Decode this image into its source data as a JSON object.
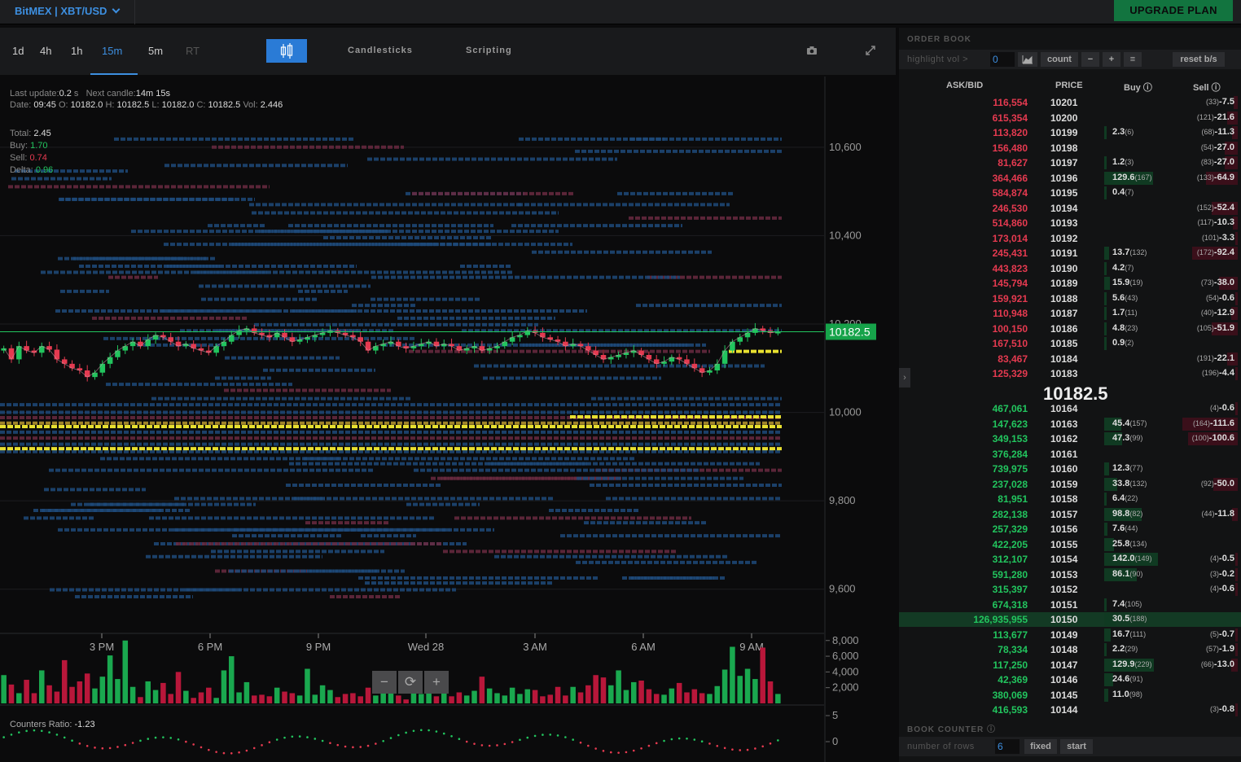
{
  "header": {
    "market": "BitMEX | XBT/USD",
    "upgrade": "UPGRADE PLAN"
  },
  "chartbar": {
    "timeframes": [
      "1d",
      "4h",
      "1h",
      "15m",
      "5m",
      "RT"
    ],
    "active_timeframe": "15m",
    "candlesticks": "Candlesticks",
    "scripting": "Scripting"
  },
  "chart_info": {
    "last_update_label": "Last update:",
    "last_update": "0.2",
    "last_update_unit": "s",
    "next_candle_label": "Next candle:",
    "next_candle": "14m 15s",
    "date_label": "Date:",
    "date": "09:45",
    "open_label": "O:",
    "open": "10182.0",
    "high_label": "H:",
    "high": "10182.5",
    "low_label": "L:",
    "low": "10182.0",
    "close_label": "C:",
    "close": "10182.5",
    "vol_label": "Vol:",
    "vol": "2.446",
    "total_label": "Total:",
    "total": "2.45",
    "buy_label": "Buy:",
    "buy": "1.70",
    "sell_label": "Sell:",
    "sell": "0.74",
    "delta_label": "Delta:",
    "delta": "0.96",
    "counters_label": "Counters Ratio:",
    "counters": "-1.23",
    "zoom_out": "−",
    "reset": "⟳",
    "zoom_in": "+"
  },
  "chart_data": {
    "type": "candlestick",
    "price_axis": {
      "ticks": [
        "10,600",
        "10,400",
        "10,200",
        "10,000",
        "9,800",
        "9,600"
      ],
      "range": [
        9500,
        10760
      ]
    },
    "current_price": "10182.5",
    "time_axis": [
      "3 PM",
      "6 PM",
      "9 PM",
      "Wed 28",
      "3 AM",
      "6 AM",
      "9 AM"
    ],
    "volume_axis": {
      "ticks": [
        "8,000",
        "6,000",
        "4,000",
        "2,000"
      ],
      "range": [
        0,
        8700
      ]
    },
    "ratio_axis": {
      "ticks": [
        "5",
        "0"
      ]
    },
    "close": [
      10145,
      10120,
      10150,
      10140,
      10135,
      10150,
      10142,
      10120,
      10110,
      10100,
      10095,
      10080,
      10090,
      10110,
      10125,
      10140,
      10150,
      10160,
      10150,
      10165,
      10175,
      10170,
      10160,
      10150,
      10155,
      10145,
      10140,
      10135,
      10150,
      10160,
      10175,
      10185,
      10190,
      10180,
      10175,
      10170,
      10180,
      10170,
      10160,
      10165,
      10170,
      10175,
      10180,
      10185,
      10180,
      10175,
      10170,
      10160,
      10140,
      10150,
      10155,
      10160,
      10150,
      10145,
      10150,
      10155,
      10160,
      10150,
      10155,
      10150,
      10140,
      10145,
      10150,
      10140,
      10145,
      10150,
      10160,
      10170,
      10175,
      10185,
      10180,
      10170,
      10165,
      10160,
      10150,
      10155,
      10150,
      10140,
      10130,
      10120,
      10125,
      10130,
      10135,
      10140,
      10130,
      10120,
      10110,
      10115,
      10125,
      10120,
      10110,
      10100,
      10090,
      10095,
      10110,
      10140,
      10160,
      10170,
      10180,
      10190,
      10185,
      10180,
      10182.5
    ],
    "volume": [
      3600,
      2400,
      1300,
      3000,
      1300,
      4200,
      2300,
      1500,
      5500,
      2100,
      2800,
      3800,
      1900,
      3400,
      6100,
      3100,
      8000,
      2100,
      800,
      2800,
      1700,
      2600,
      1200,
      4000,
      1600,
      700,
      1400,
      2000,
      700,
      4200,
      6000,
      1400,
      2700,
      1000,
      1100,
      900,
      2000,
      1500,
      1300,
      1000,
      4400,
      1100,
      2300,
      1700,
      800,
      1200,
      1300,
      900,
      2000,
      1000,
      1600,
      1300,
      1000,
      500,
      1500,
      1200,
      1500,
      900,
      1300,
      900,
      1400,
      1000,
      1600,
      3400,
      1900,
      1300,
      1000,
      2000,
      1200,
      1800,
      1700,
      900,
      1100,
      2100,
      1000,
      2100,
      1400,
      2300,
      3600,
      3300,
      2300,
      4200,
      1700,
      2700,
      2900,
      1800,
      1200,
      1100,
      1900,
      2600,
      1400,
      1800,
      1300,
      1200,
      2200,
      4300,
      7200,
      3500,
      4400,
      3100,
      7100,
      2800,
      1200
    ]
  },
  "order_book": {
    "title": "ORDER BOOK",
    "highlight_label": "highlight vol >",
    "highlight_value": "0",
    "count": "count",
    "reset": "reset b/s",
    "headers": {
      "askbid": "ASK/BID",
      "price": "PRICE",
      "buy": "Buy",
      "sell": "Sell"
    },
    "mid_price": "10182.5",
    "asks": [
      {
        "size": "116,554",
        "price": "10201",
        "buy": "",
        "bc": "",
        "sc": "(33)",
        "sell": "-7.5"
      },
      {
        "size": "615,354",
        "price": "10200",
        "buy": "",
        "bc": "",
        "sc": "(121)",
        "sell": "-21.6"
      },
      {
        "size": "113,820",
        "price": "10199",
        "buy": "2.3",
        "bc": "(6)",
        "sc": "(68)",
        "sell": "-11.3"
      },
      {
        "size": "156,480",
        "price": "10198",
        "buy": "",
        "bc": "",
        "sc": "(54)",
        "sell": "-27.0"
      },
      {
        "size": "81,627",
        "price": "10197",
        "buy": "1.2",
        "bc": "(3)",
        "sc": "(83)",
        "sell": "-27.0"
      },
      {
        "size": "364,466",
        "price": "10196",
        "buy": "129.6",
        "bc": "(167)",
        "sc": "(133)",
        "sell": "-64.9"
      },
      {
        "size": "584,874",
        "price": "10195",
        "buy": "0.4",
        "bc": "(7)",
        "sc": "",
        "sell": ""
      },
      {
        "size": "246,530",
        "price": "10194",
        "buy": "",
        "bc": "",
        "sc": "(152)",
        "sell": "-52.4"
      },
      {
        "size": "514,860",
        "price": "10193",
        "buy": "",
        "bc": "",
        "sc": "(117)",
        "sell": "-10.3"
      },
      {
        "size": "173,014",
        "price": "10192",
        "buy": "",
        "bc": "",
        "sc": "(101)",
        "sell": "-3.3"
      },
      {
        "size": "245,431",
        "price": "10191",
        "buy": "13.7",
        "bc": "(132)",
        "sc": "(172)",
        "sell": "-92.4"
      },
      {
        "size": "443,823",
        "price": "10190",
        "buy": "4.2",
        "bc": "(7)",
        "sc": "",
        "sell": ""
      },
      {
        "size": "145,794",
        "price": "10189",
        "buy": "15.9",
        "bc": "(19)",
        "sc": "(73)",
        "sell": "-38.0"
      },
      {
        "size": "159,921",
        "price": "10188",
        "buy": "5.6",
        "bc": "(43)",
        "sc": "(54)",
        "sell": "-0.6"
      },
      {
        "size": "110,948",
        "price": "10187",
        "buy": "1.7",
        "bc": "(11)",
        "sc": "(40)",
        "sell": "-12.9"
      },
      {
        "size": "100,150",
        "price": "10186",
        "buy": "4.8",
        "bc": "(23)",
        "sc": "(105)",
        "sell": "-51.9"
      },
      {
        "size": "167,510",
        "price": "10185",
        "buy": "0.9",
        "bc": "(2)",
        "sc": "",
        "sell": ""
      },
      {
        "size": "83,467",
        "price": "10184",
        "buy": "",
        "bc": "",
        "sc": "(191)",
        "sell": "-22.1"
      },
      {
        "size": "125,329",
        "price": "10183",
        "buy": "",
        "bc": "",
        "sc": "(196)",
        "sell": "-4.4"
      }
    ],
    "bids": [
      {
        "size": "467,061",
        "price": "10164",
        "buy": "",
        "bc": "",
        "sc": "(4)",
        "sell": "-0.6"
      },
      {
        "size": "147,623",
        "price": "10163",
        "buy": "45.4",
        "bc": "(157)",
        "sc": "(164)",
        "sell": "-111.6"
      },
      {
        "size": "349,153",
        "price": "10162",
        "buy": "47.3",
        "bc": "(99)",
        "sc": "(100)",
        "sell": "-100.6"
      },
      {
        "size": "376,284",
        "price": "10161",
        "buy": "",
        "bc": "",
        "sc": "",
        "sell": ""
      },
      {
        "size": "739,975",
        "price": "10160",
        "buy": "12.3",
        "bc": "(77)",
        "sc": "",
        "sell": ""
      },
      {
        "size": "237,028",
        "price": "10159",
        "buy": "33.8",
        "bc": "(132)",
        "sc": "(92)",
        "sell": "-50.0"
      },
      {
        "size": "81,951",
        "price": "10158",
        "buy": "6.4",
        "bc": "(22)",
        "sc": "",
        "sell": ""
      },
      {
        "size": "282,138",
        "price": "10157",
        "buy": "98.8",
        "bc": "(82)",
        "sc": "(44)",
        "sell": "-11.8"
      },
      {
        "size": "257,329",
        "price": "10156",
        "buy": "7.6",
        "bc": "(44)",
        "sc": "",
        "sell": ""
      },
      {
        "size": "422,205",
        "price": "10155",
        "buy": "25.8",
        "bc": "(134)",
        "sc": "",
        "sell": ""
      },
      {
        "size": "312,107",
        "price": "10154",
        "buy": "142.0",
        "bc": "(149)",
        "sc": "(4)",
        "sell": "-0.5"
      },
      {
        "size": "591,280",
        "price": "10153",
        "buy": "86.1",
        "bc": "(90)",
        "sc": "(3)",
        "sell": "-0.2"
      },
      {
        "size": "315,397",
        "price": "10152",
        "buy": "",
        "bc": "",
        "sc": "(4)",
        "sell": "-0.6"
      },
      {
        "size": "674,318",
        "price": "10151",
        "buy": "7.4",
        "bc": "(105)",
        "sc": "",
        "sell": ""
      },
      {
        "size": "126,935,955",
        "price": "10150",
        "buy": "30.5",
        "bc": "(188)",
        "sc": "",
        "sell": ""
      },
      {
        "size": "113,677",
        "price": "10149",
        "buy": "16.7",
        "bc": "(111)",
        "sc": "(5)",
        "sell": "-0.7"
      },
      {
        "size": "78,334",
        "price": "10148",
        "buy": "2.2",
        "bc": "(29)",
        "sc": "(57)",
        "sell": "-1.9"
      },
      {
        "size": "117,250",
        "price": "10147",
        "buy": "129.9",
        "bc": "(229)",
        "sc": "(66)",
        "sell": "-13.0"
      },
      {
        "size": "42,369",
        "price": "10146",
        "buy": "24.6",
        "bc": "(91)",
        "sc": "",
        "sell": ""
      },
      {
        "size": "380,069",
        "price": "10145",
        "buy": "11.0",
        "bc": "(98)",
        "sc": "",
        "sell": ""
      },
      {
        "size": "416,593",
        "price": "10144",
        "buy": "",
        "bc": "",
        "sc": "(3)",
        "sell": "-0.8"
      }
    ],
    "highlighted_price": "10150"
  },
  "book_counter": {
    "title": "BOOK COUNTER",
    "rows_label": "number of rows",
    "rows_value": "6",
    "fixed": "fixed",
    "start": "start"
  },
  "colors": {
    "accent": "#3d8fe0",
    "up": "#22c55e",
    "down": "#e53a50",
    "heat_blue": "#1e4a7a",
    "heat_red": "#6a2a40",
    "heat_yellow": "#e8e030"
  }
}
